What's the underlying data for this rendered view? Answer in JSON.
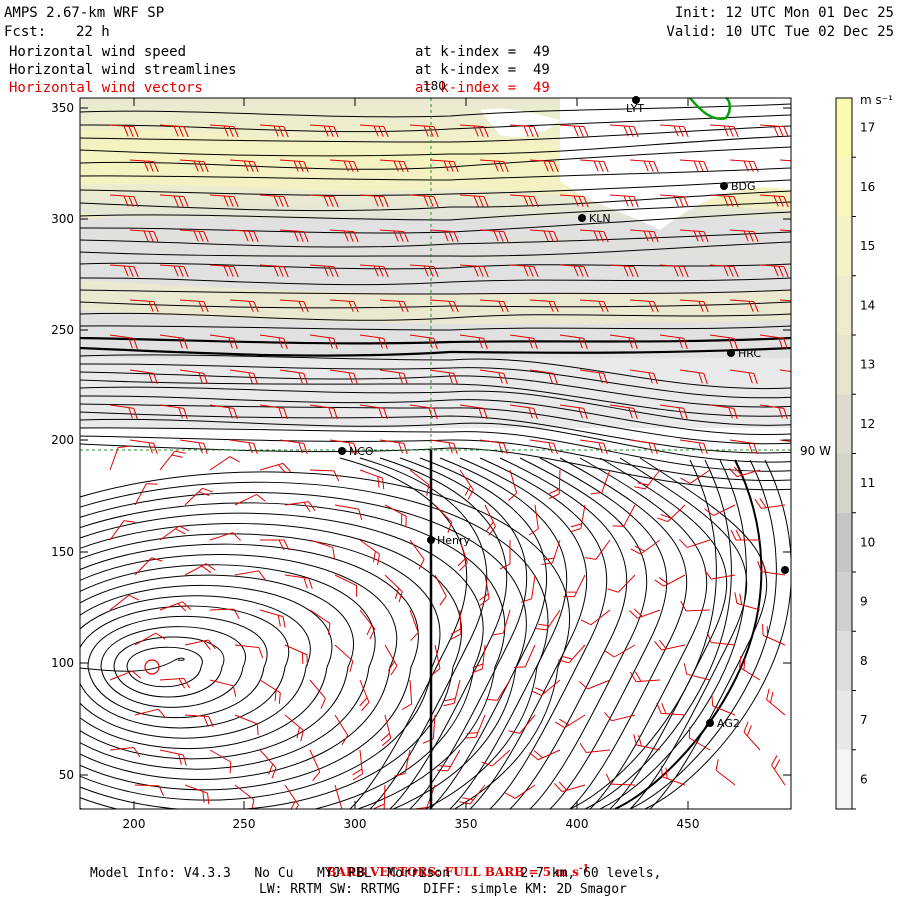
{
  "header": {
    "model": "AMPS 2.67-km WRF SP",
    "init": "Init: 12 UTC Mon 01 Dec 25",
    "fcst_label": "Fcst:",
    "fcst_value": "22 h",
    "valid": "Valid: 10 UTC Tue 02 Dec 25",
    "fields": [
      {
        "name": "Horizontal wind speed",
        "level": "at k-index =  49",
        "color": "#000000"
      },
      {
        "name": "Horizontal wind streamlines",
        "level": "at k-index =  49",
        "color": "#000000"
      },
      {
        "name": "Horizontal wind vectors",
        "level": "at k-index =  49",
        "color": "#e00000"
      }
    ]
  },
  "map": {
    "x_ticks": [
      "200",
      "250",
      "300",
      "350",
      "400",
      "450"
    ],
    "y_ticks": [
      "50",
      "100",
      "150",
      "200",
      "250",
      "300",
      "350"
    ],
    "lon_label": "180",
    "lat_label": "90 W",
    "stations": [
      {
        "name": "LYT"
      },
      {
        "name": "BDG"
      },
      {
        "name": "KLN"
      },
      {
        "name": "HRC"
      },
      {
        "name": "NCO"
      },
      {
        "name": "Henry"
      },
      {
        "name": "AG2"
      }
    ]
  },
  "colorbar": {
    "units": "m s⁻¹",
    "labels": [
      "17",
      "16",
      "15",
      "14",
      "13",
      "12",
      "11",
      "10",
      "9",
      "8",
      "7",
      "6"
    ],
    "colors": [
      "#fbfbb0",
      "#f7f7bd",
      "#f2f2c6",
      "#ededcd",
      "#e6e6cf",
      "#dddccc",
      "#d3d3c8",
      "#c6c6c6",
      "#cfcfcf",
      "#dcdcdc",
      "#e8e8e8",
      "#f5f5f5"
    ]
  },
  "footer": {
    "barb_prefix": "BARB VECTORS:",
    "barb_text": "FULL BARB = 5 m s",
    "barb_exp": "-1",
    "model_info": "Model Info: V4.3.3   No Cu   MYJ PBL  Morrison         2.7 km, 60 levels,",
    "physics": "LW: RRTM SW: RRTMG   DIFF: simple KM: 2D Smagor"
  },
  "colors": {
    "barb": "#e00000",
    "grid": "#2a8a2a",
    "coast": "#00a000"
  }
}
